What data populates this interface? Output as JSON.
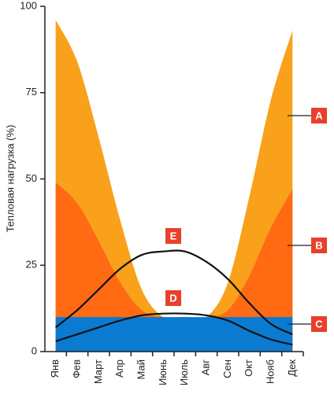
{
  "chart_data": {
    "type": "area",
    "y_label": "Тепловая нагрузка (%)",
    "categories": [
      "Янв",
      "Фев",
      "Март",
      "Апр",
      "Май",
      "Июнь",
      "Июль",
      "Авг",
      "Сен",
      "Окт",
      "Нояб",
      "Дек"
    ],
    "ylim": [
      0,
      100
    ],
    "yticks": [
      0,
      25,
      50,
      75,
      100
    ],
    "grid": false,
    "series": [
      {
        "name": "A",
        "kind": "area",
        "color": "#f9a11b",
        "values": [
          96,
          84,
          62,
          38,
          18,
          10,
          10,
          10,
          20,
          45,
          73,
          93
        ]
      },
      {
        "name": "B",
        "kind": "area",
        "color": "#ff6a13",
        "values": [
          49,
          43,
          32,
          20,
          12,
          10,
          10,
          10,
          12,
          22,
          36,
          47
        ]
      },
      {
        "name": "C",
        "kind": "area",
        "color": "#0a7bd1",
        "values": [
          10,
          10,
          10,
          10,
          10,
          10,
          10,
          10,
          10,
          10,
          10,
          10
        ]
      },
      {
        "name": "D",
        "kind": "line",
        "color": "#111111",
        "values": [
          3,
          5,
          7,
          9,
          10.5,
          11,
          11,
          10.5,
          9,
          6,
          3.5,
          2
        ]
      },
      {
        "name": "E",
        "kind": "line",
        "color": "#111111",
        "values": [
          7,
          12,
          18,
          24,
          28,
          29,
          29,
          26,
          21,
          14,
          8,
          5
        ]
      }
    ]
  }
}
